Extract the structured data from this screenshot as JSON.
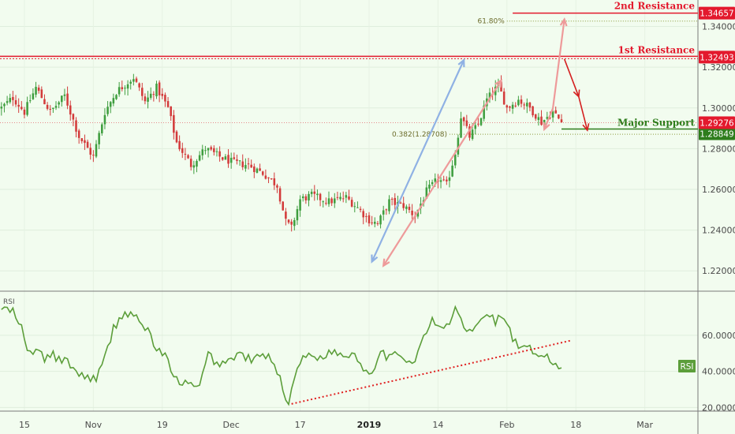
{
  "chart_data": [
    {
      "type": "candlestick",
      "price_axis": {
        "min": 1.21,
        "max": 1.353,
        "ticks": [
          1.22,
          1.24,
          1.26,
          1.28,
          1.3,
          1.32,
          1.34
        ]
      },
      "price_tick_labels": [
        "1.22000",
        "1.24000",
        "1.26000",
        "1.28000",
        "1.30000",
        "1.32000",
        "1.34000"
      ],
      "time_axis": {
        "labels": [
          "15",
          "Nov",
          "19",
          "Dec",
          "17",
          "2019",
          "14",
          "Feb",
          "18",
          "Mar"
        ],
        "label_index": [
          8,
          32,
          56,
          80,
          104,
          128,
          152,
          176,
          200,
          224
        ],
        "bold_labels": [
          "2019"
        ],
        "num_slots": 243
      },
      "levels": [
        {
          "name": "2nd Resistance",
          "value": 1.34657,
          "badge": "1.34657",
          "color": "#e3192d"
        },
        {
          "name": "1st Resistance",
          "value": 1.32493,
          "badge": "1.32493",
          "color": "#e3192d"
        },
        {
          "name": "Major Support",
          "value": 1.28849,
          "badge": "1.28849",
          "color": "#2e7d1c"
        }
      ],
      "current_price": {
        "value": 1.29276,
        "badge": "1.29276",
        "color": "#e3192d"
      },
      "fibonacci": [
        {
          "label": "61.80%",
          "value": 1.34265
        },
        {
          "label": "0.382(1.28708)",
          "value": 1.28708
        }
      ],
      "anchors": [
        {
          "i": 0,
          "p": 1.3
        },
        {
          "i": 4,
          "p": 1.305
        },
        {
          "i": 8,
          "p": 1.298
        },
        {
          "i": 12,
          "p": 1.31
        },
        {
          "i": 17,
          "p": 1.298
        },
        {
          "i": 22,
          "p": 1.306
        },
        {
          "i": 27,
          "p": 1.286
        },
        {
          "i": 32,
          "p": 1.276
        },
        {
          "i": 36,
          "p": 1.298
        },
        {
          "i": 40,
          "p": 1.308
        },
        {
          "i": 46,
          "p": 1.315
        },
        {
          "i": 50,
          "p": 1.303
        },
        {
          "i": 54,
          "p": 1.31
        },
        {
          "i": 58,
          "p": 1.3
        },
        {
          "i": 61,
          "p": 1.283
        },
        {
          "i": 66,
          "p": 1.272
        },
        {
          "i": 71,
          "p": 1.28
        },
        {
          "i": 76,
          "p": 1.276
        },
        {
          "i": 81,
          "p": 1.273
        },
        {
          "i": 86,
          "p": 1.272
        },
        {
          "i": 91,
          "p": 1.268
        },
        {
          "i": 96,
          "p": 1.262
        },
        {
          "i": 99,
          "p": 1.244
        },
        {
          "i": 101,
          "p": 1.241
        },
        {
          "i": 104,
          "p": 1.255
        },
        {
          "i": 108,
          "p": 1.257
        },
        {
          "i": 114,
          "p": 1.254
        },
        {
          "i": 120,
          "p": 1.256
        },
        {
          "i": 124,
          "p": 1.251
        },
        {
          "i": 128,
          "p": 1.245
        },
        {
          "i": 131,
          "p": 1.243
        },
        {
          "i": 135,
          "p": 1.254
        },
        {
          "i": 140,
          "p": 1.252
        },
        {
          "i": 144,
          "p": 1.247
        },
        {
          "i": 148,
          "p": 1.259
        },
        {
          "i": 152,
          "p": 1.265
        },
        {
          "i": 155,
          "p": 1.262
        },
        {
          "i": 158,
          "p": 1.278
        },
        {
          "i": 160,
          "p": 1.296
        },
        {
          "i": 163,
          "p": 1.286
        },
        {
          "i": 166,
          "p": 1.292
        },
        {
          "i": 169,
          "p": 1.304
        },
        {
          "i": 173,
          "p": 1.311
        },
        {
          "i": 176,
          "p": 1.3
        },
        {
          "i": 180,
          "p": 1.304
        },
        {
          "i": 184,
          "p": 1.3
        },
        {
          "i": 188,
          "p": 1.293
        },
        {
          "i": 192,
          "p": 1.298
        },
        {
          "i": 195,
          "p": 1.293
        }
      ],
      "annotation_arrows": [
        {
          "name": "blue-projection-arrow",
          "color": "#8fb1e4",
          "from": {
            "i": 129,
            "p": 1.2245
          },
          "to": {
            "i": 161,
            "p": 1.3235
          }
        },
        {
          "name": "pink-up-arrow-1",
          "color": "#ee9a9a",
          "from": {
            "i": 133,
            "p": 1.2225
          },
          "to": {
            "i": 174,
            "p": 1.3135
          }
        },
        {
          "name": "pink-down-arrow",
          "color": "#ee9a9a",
          "from": {
            "i": 192,
            "p": 1.2998
          },
          "to": {
            "i": 189,
            "p": 1.2895
          }
        },
        {
          "name": "pink-up-arrow-2",
          "color": "#ee9a9a",
          "from": {
            "i": 192,
            "p": 1.2998
          },
          "to": {
            "i": 196,
            "p": 1.3435
          }
        },
        {
          "name": "red-down-arrow-1",
          "color": "#d42020",
          "from": {
            "i": 196,
            "p": 1.324
          },
          "to": {
            "i": 201,
            "p": 1.3055
          }
        },
        {
          "name": "red-down-arrow-2",
          "color": "#d42020",
          "from": {
            "i": 201,
            "p": 1.3055
          },
          "to": {
            "i": 204,
            "p": 1.289
          }
        }
      ]
    },
    {
      "type": "line",
      "indicator": "RSI",
      "title": "RSI",
      "badge_text": "RSI",
      "value_axis": {
        "min": 18,
        "max": 84,
        "ticks": [
          20,
          40,
          60
        ]
      },
      "value_tick_labels": [
        "20.0000",
        "40.0000",
        "60.0000"
      ],
      "color": "#5c9e3a",
      "anchors": [
        {
          "i": 0,
          "v": 75
        },
        {
          "i": 4,
          "v": 73
        },
        {
          "i": 7,
          "v": 64
        },
        {
          "i": 9,
          "v": 50
        },
        {
          "i": 12,
          "v": 52
        },
        {
          "i": 15,
          "v": 47
        },
        {
          "i": 18,
          "v": 49
        },
        {
          "i": 21,
          "v": 46
        },
        {
          "i": 24,
          "v": 44
        },
        {
          "i": 27,
          "v": 38
        },
        {
          "i": 30,
          "v": 37
        },
        {
          "i": 33,
          "v": 36
        },
        {
          "i": 36,
          "v": 47
        },
        {
          "i": 39,
          "v": 64
        },
        {
          "i": 42,
          "v": 71
        },
        {
          "i": 45,
          "v": 73
        },
        {
          "i": 48,
          "v": 67
        },
        {
          "i": 51,
          "v": 63
        },
        {
          "i": 54,
          "v": 52
        },
        {
          "i": 57,
          "v": 49
        },
        {
          "i": 60,
          "v": 36
        },
        {
          "i": 63,
          "v": 34
        },
        {
          "i": 66,
          "v": 32
        },
        {
          "i": 69,
          "v": 31
        },
        {
          "i": 72,
          "v": 50
        },
        {
          "i": 75,
          "v": 44
        },
        {
          "i": 79,
          "v": 46
        },
        {
          "i": 83,
          "v": 50
        },
        {
          "i": 87,
          "v": 46
        },
        {
          "i": 91,
          "v": 49
        },
        {
          "i": 95,
          "v": 46
        },
        {
          "i": 98,
          "v": 30
        },
        {
          "i": 100,
          "v": 22
        },
        {
          "i": 103,
          "v": 44
        },
        {
          "i": 107,
          "v": 49
        },
        {
          "i": 111,
          "v": 48
        },
        {
          "i": 115,
          "v": 51
        },
        {
          "i": 119,
          "v": 49
        },
        {
          "i": 123,
          "v": 50
        },
        {
          "i": 126,
          "v": 41
        },
        {
          "i": 129,
          "v": 40
        },
        {
          "i": 132,
          "v": 52
        },
        {
          "i": 135,
          "v": 47
        },
        {
          "i": 139,
          "v": 50
        },
        {
          "i": 143,
          "v": 44
        },
        {
          "i": 146,
          "v": 55
        },
        {
          "i": 150,
          "v": 68
        },
        {
          "i": 153,
          "v": 63
        },
        {
          "i": 156,
          "v": 67
        },
        {
          "i": 158,
          "v": 75
        },
        {
          "i": 160,
          "v": 68
        },
        {
          "i": 163,
          "v": 61
        },
        {
          "i": 166,
          "v": 66
        },
        {
          "i": 169,
          "v": 73
        },
        {
          "i": 172,
          "v": 68
        },
        {
          "i": 175,
          "v": 71
        },
        {
          "i": 178,
          "v": 58
        },
        {
          "i": 181,
          "v": 52
        },
        {
          "i": 184,
          "v": 52
        },
        {
          "i": 187,
          "v": 47
        },
        {
          "i": 190,
          "v": 49
        },
        {
          "i": 193,
          "v": 42
        },
        {
          "i": 195,
          "v": 43
        }
      ],
      "trendline": {
        "from": {
          "i": 101,
          "v": 22
        },
        "to": {
          "i": 198,
          "v": 57
        },
        "color": "#e02020",
        "style": "dotted"
      }
    }
  ]
}
